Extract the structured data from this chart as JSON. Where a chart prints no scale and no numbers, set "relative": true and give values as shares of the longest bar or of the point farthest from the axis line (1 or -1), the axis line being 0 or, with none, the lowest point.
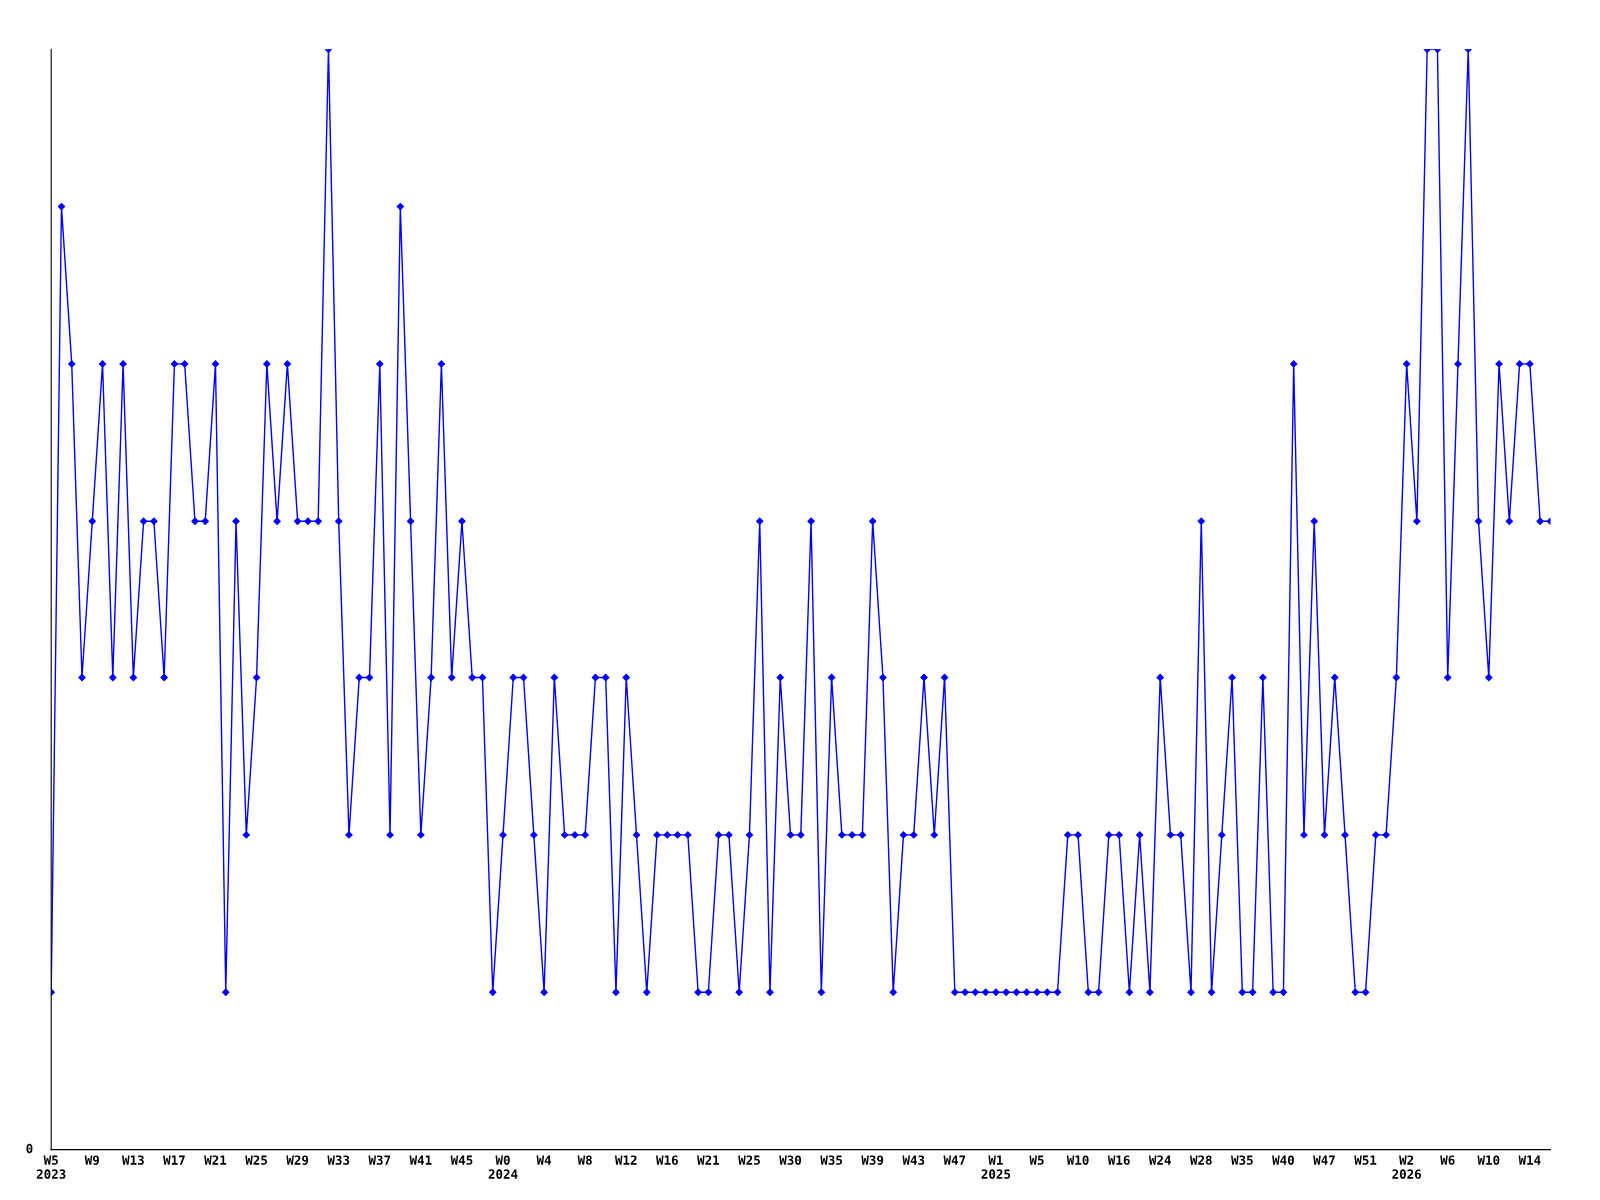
{
  "chart_data": {
    "type": "line",
    "relative": true,
    "marker": "diamond",
    "line_style": "solid",
    "grid": false,
    "legend": false,
    "annotations": [
      "0"
    ],
    "categories": [
      "W5\n2023",
      null,
      null,
      null,
      "W9",
      null,
      null,
      null,
      "W13",
      null,
      null,
      null,
      "W17",
      null,
      null,
      null,
      "W21",
      null,
      null,
      null,
      "W25",
      null,
      null,
      null,
      "W29",
      null,
      null,
      null,
      "W33",
      null,
      null,
      null,
      "W37",
      null,
      null,
      null,
      "W41",
      null,
      null,
      null,
      "W45",
      null,
      null,
      null,
      "W0\n2024",
      null,
      null,
      null,
      "W4",
      null,
      null,
      null,
      "W8",
      null,
      null,
      null,
      "W12",
      null,
      null,
      null,
      "W16",
      null,
      null,
      null,
      "W21",
      null,
      null,
      null,
      "W25",
      null,
      null,
      null,
      "W30",
      null,
      null,
      null,
      "W35",
      null,
      null,
      null,
      "W39",
      null,
      null,
      null,
      "W43",
      null,
      null,
      null,
      "W47",
      null,
      null,
      null,
      "W1\n2025",
      null,
      null,
      null,
      "W5",
      null,
      null,
      null,
      "W10",
      null,
      null,
      null,
      "W16",
      null,
      null,
      null,
      "W24",
      null,
      null,
      null,
      "W28",
      null,
      null,
      null,
      "W35",
      null,
      null,
      null,
      "W40",
      null,
      null,
      null,
      "W47",
      null,
      null,
      null,
      "W51",
      null,
      null,
      null,
      "W2\n2026",
      null,
      null,
      null,
      "W6",
      null,
      null,
      null,
      "W10",
      null,
      null,
      null,
      "W14",
      null,
      null
    ],
    "series": [
      {
        "color": "#0000ff",
        "values": [
          0.143,
          0.857,
          0.714,
          0.429,
          0.571,
          0.714,
          0.429,
          0.714,
          0.429,
          0.571,
          0.571,
          0.429,
          0.714,
          0.714,
          0.571,
          0.571,
          0.714,
          0.143,
          0.571,
          0.286,
          0.429,
          0.714,
          0.571,
          0.714,
          0.571,
          0.571,
          0.571,
          1,
          0.571,
          0.286,
          0.429,
          0.429,
          0.714,
          0.286,
          0.857,
          0.571,
          0.286,
          0.429,
          0.714,
          0.429,
          0.571,
          0.429,
          0.429,
          0.143,
          0.286,
          0.429,
          0.429,
          0.286,
          0.143,
          0.429,
          0.286,
          0.286,
          0.286,
          0.429,
          0.429,
          0.143,
          0.429,
          0.286,
          0.143,
          0.286,
          0.286,
          0.286,
          0.286,
          0.143,
          0.143,
          0.286,
          0.286,
          0.143,
          0.286,
          0.571,
          0.143,
          0.429,
          0.286,
          0.286,
          0.571,
          0.143,
          0.429,
          0.286,
          0.286,
          0.286,
          0.571,
          0.429,
          0.143,
          0.286,
          0.286,
          0.429,
          0.286,
          0.429,
          0.143,
          0.143,
          0.143,
          0.143,
          0.143,
          0.143,
          0.143,
          0.143,
          0.143,
          0.143,
          0.143,
          0.286,
          0.286,
          0.143,
          0.143,
          0.286,
          0.286,
          0.143,
          0.286,
          0.143,
          0.429,
          0.286,
          0.286,
          0.143,
          0.571,
          0.143,
          0.286,
          0.429,
          0.143,
          0.143,
          0.429,
          0.143,
          0.143,
          0.714,
          0.286,
          0.571,
          0.286,
          0.429,
          0.286,
          0.143,
          0.143,
          0.286,
          0.286,
          0.429,
          0.714,
          0.571,
          1,
          1,
          0.429,
          0.714,
          1,
          0.571,
          0.429,
          0.714,
          0.571,
          0.714,
          0.714,
          0.571,
          0.571
        ]
      }
    ]
  }
}
